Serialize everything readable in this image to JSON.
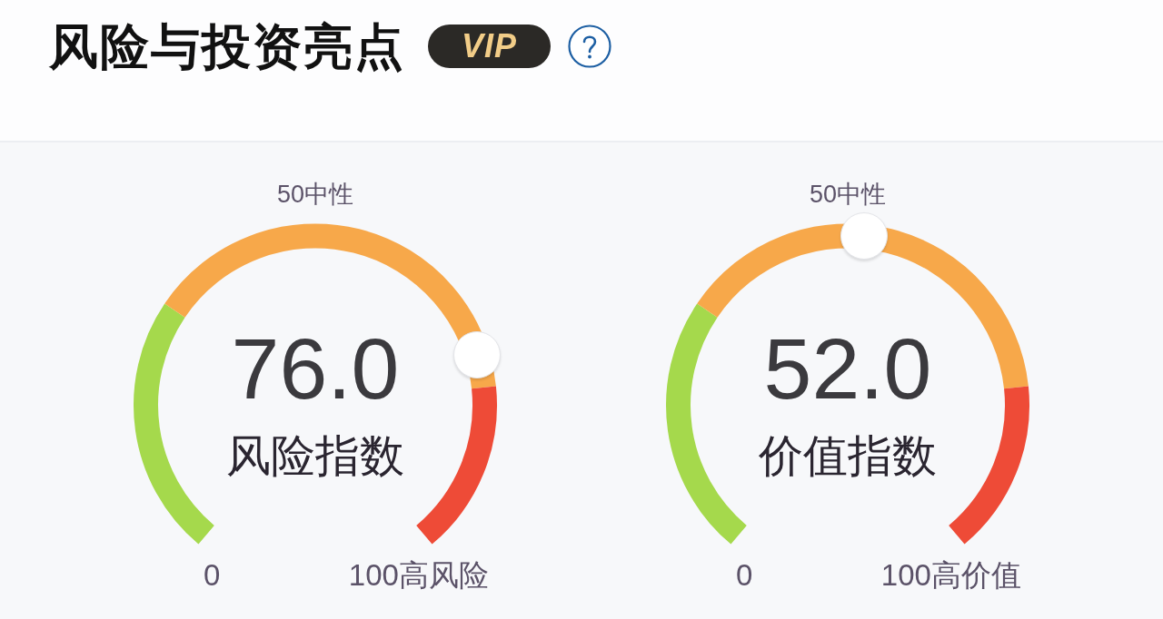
{
  "chart_data": [
    {
      "type": "other",
      "title": "风险与投资亮点",
      "annotations": [
        "VIP"
      ]
    },
    {
      "type": "donut",
      "ylabel": "风险指数",
      "categories": [
        null,
        null,
        null
      ],
      "values": [
        30,
        50,
        20
      ],
      "colors": [
        "#a5d94c",
        "#f7a84a",
        "#ee4b37"
      ],
      "annotations": [
        "76.0",
        "0",
        "50中性",
        "100高风险"
      ]
    },
    {
      "type": "donut",
      "ylabel": "价值指数",
      "categories": [
        null,
        null,
        null
      ],
      "values": [
        30,
        50,
        20
      ],
      "colors": [
        "#a5d94c",
        "#f7a84a",
        "#ee4b37"
      ],
      "annotations": [
        "52.0",
        "0",
        "50中性",
        "100高价值"
      ]
    }
  ]
}
